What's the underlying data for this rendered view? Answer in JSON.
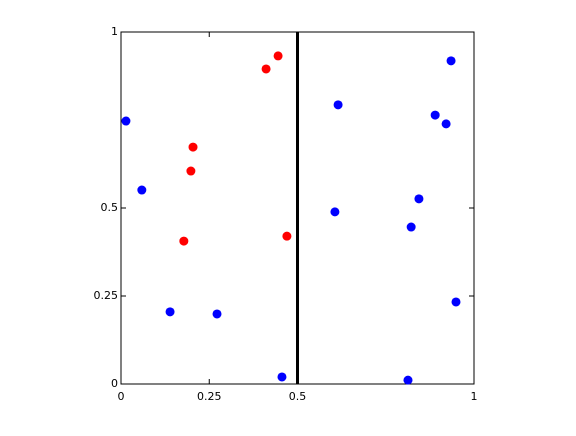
{
  "chart_data": {
    "type": "scatter",
    "series": [
      {
        "color": "#0000ff",
        "x": [
          0.014,
          0.059,
          0.139,
          0.272,
          0.456,
          0.615,
          0.606,
          0.822,
          0.844,
          0.89,
          0.921,
          0.935,
          0.949,
          0.813
        ],
        "values": [
          0.747,
          0.551,
          0.205,
          0.199,
          0.02,
          0.793,
          0.489,
          0.446,
          0.526,
          0.764,
          0.739,
          0.918,
          0.233,
          0.011
        ]
      },
      {
        "color": "#ff0000",
        "x": [
          0.411,
          0.445,
          0.204,
          0.198,
          0.178,
          0.47
        ],
        "values": [
          0.895,
          0.932,
          0.673,
          0.605,
          0.406,
          0.42
        ]
      }
    ],
    "vline": 0.5,
    "xlim": [
      0,
      1
    ],
    "ylim": [
      0,
      1
    ],
    "xticks": [
      0,
      0.25,
      0.5,
      1
    ],
    "yticks": [
      0,
      0.25,
      0.5,
      1
    ]
  }
}
